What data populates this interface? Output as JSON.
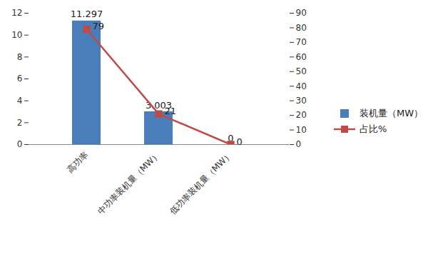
{
  "chart_data": {
    "type": "bar",
    "categories": [
      "高功率",
      "中功率装机量（MW）",
      "低功率装机量（MW）"
    ],
    "series": [
      {
        "name": "装机量（MW）",
        "type": "bar",
        "color": "#4a7ebb",
        "values": [
          11.297,
          3.003,
          0
        ]
      },
      {
        "name": "占比%",
        "type": "line",
        "axis": "y2",
        "color": "#be4b48",
        "marker": "square",
        "values": [
          79,
          21,
          0
        ]
      }
    ],
    "ylim": [
      0,
      12
    ],
    "yticks": [
      0,
      2,
      4,
      6,
      8,
      10,
      12
    ],
    "y2lim": [
      0,
      90
    ],
    "y2ticks": [
      0,
      10,
      20,
      30,
      40,
      50,
      60,
      70,
      80,
      90
    ],
    "data_labels": true,
    "grid": false,
    "legend": "right"
  }
}
